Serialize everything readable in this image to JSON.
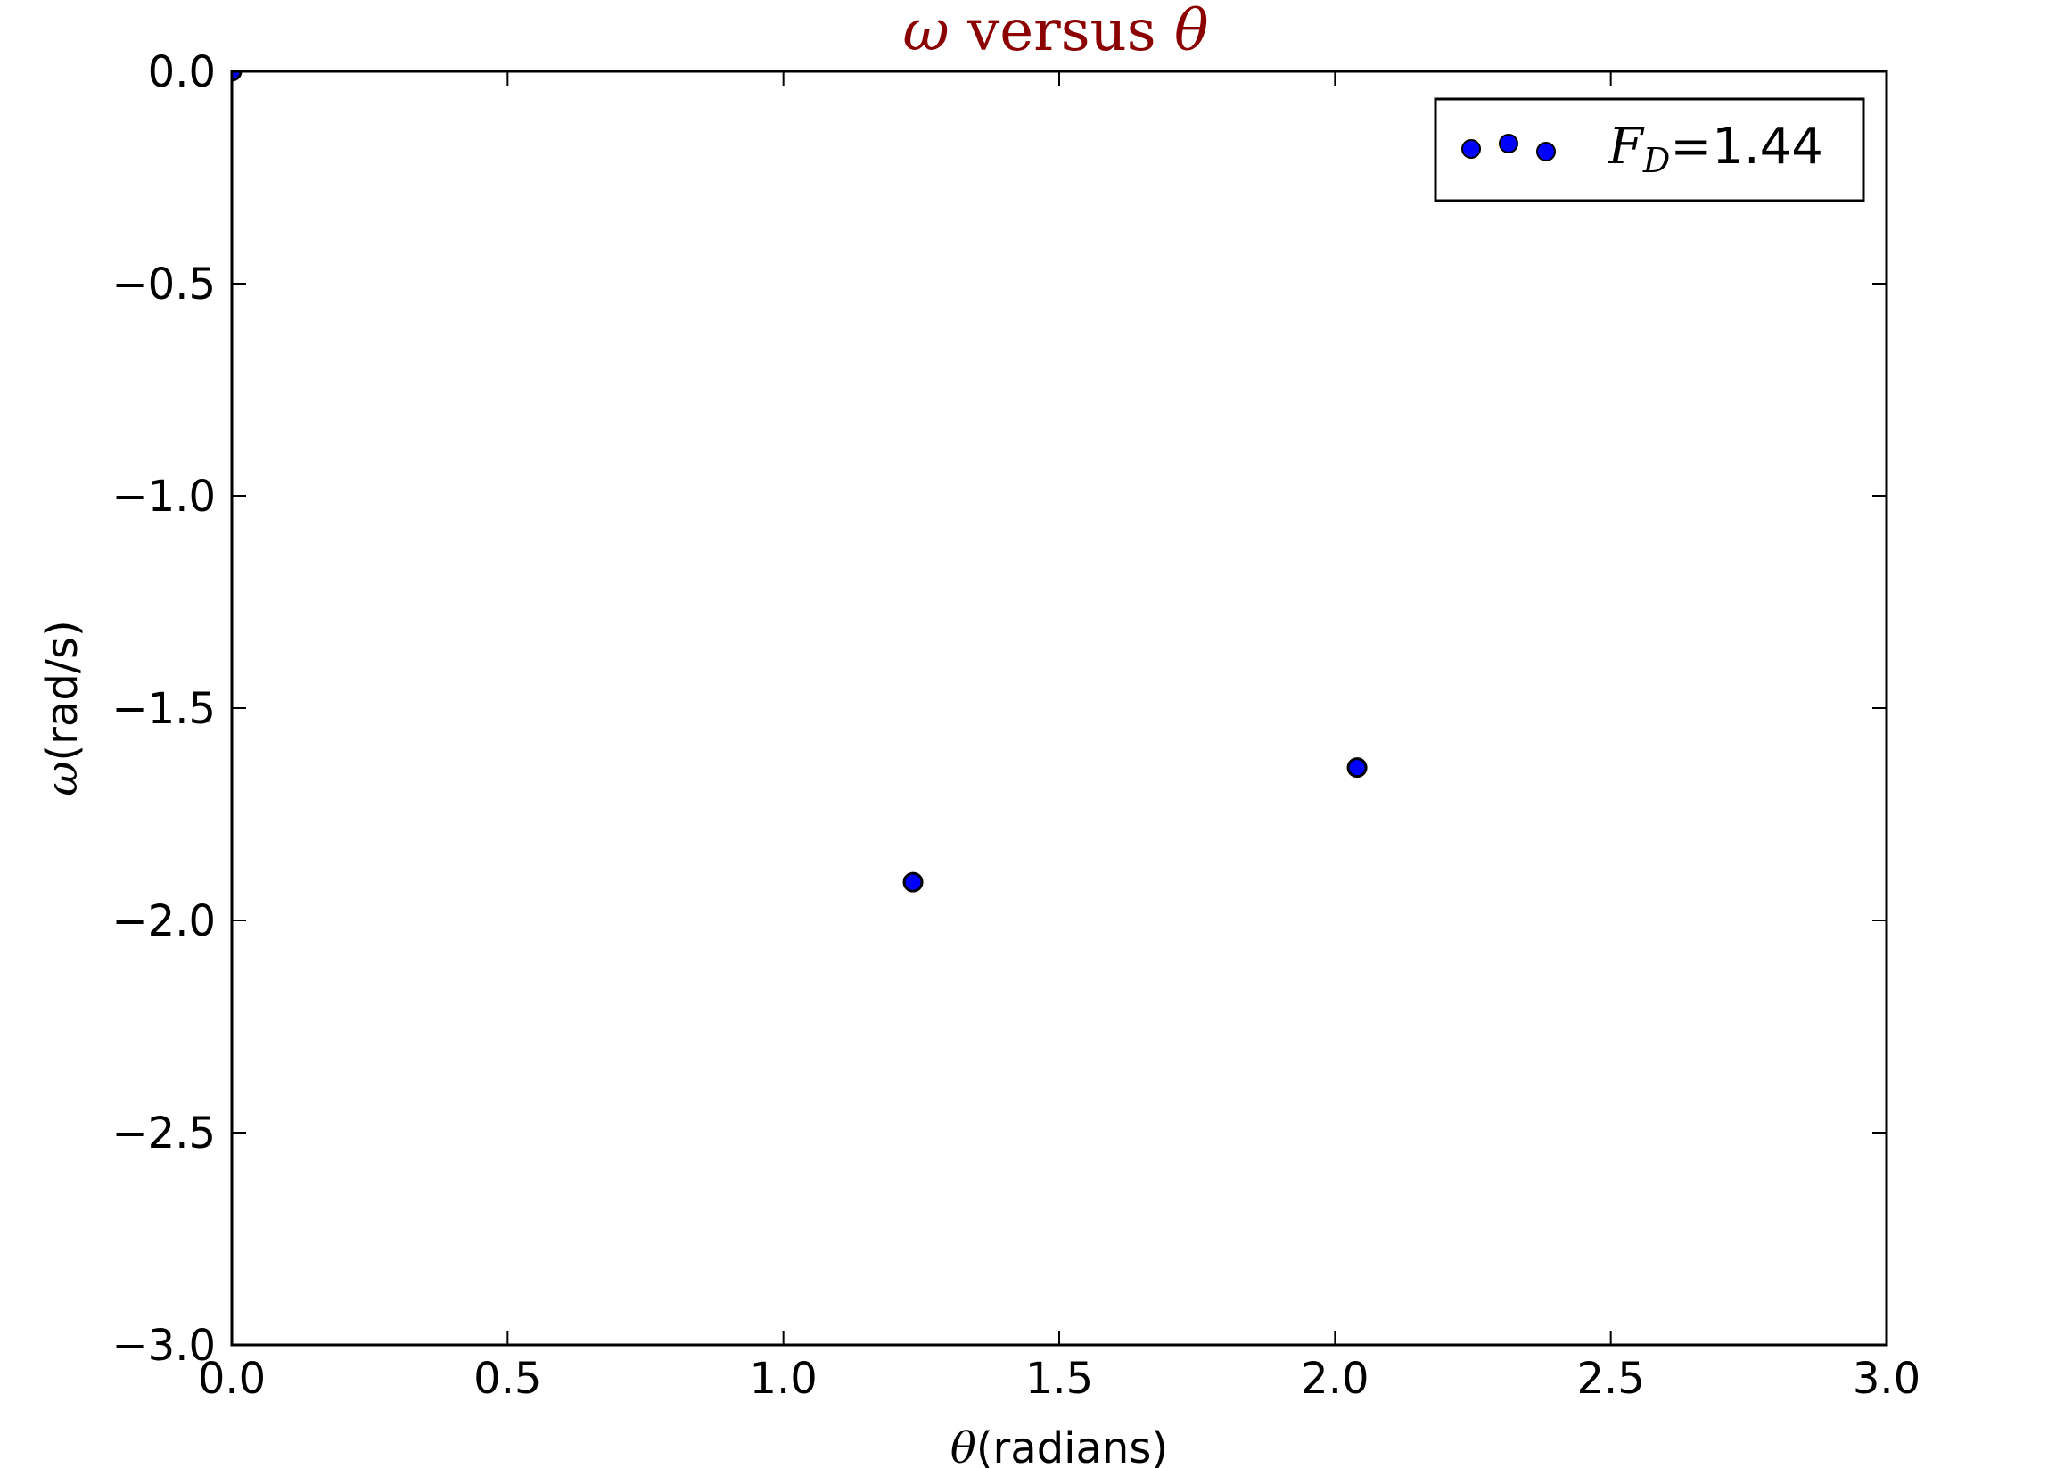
{
  "chart_data": {
    "type": "scatter",
    "title_symbol_left": "ω",
    "title_word": " versus ",
    "title_symbol_right": "θ",
    "title_color": "#8b0000",
    "xlabel_symbol": "θ",
    "xlabel_text": "(radians)",
    "ylabel_symbol": "ω",
    "ylabel_text": "(rad/s)",
    "xlim": [
      0.0,
      3.0
    ],
    "ylim": [
      -3.0,
      0.0
    ],
    "xticks": [
      "0.0",
      "0.5",
      "1.0",
      "1.5",
      "2.0",
      "2.5",
      "3.0"
    ],
    "yticks": [
      "0.0",
      "−0.5",
      "−1.0",
      "−1.5",
      "−2.0",
      "−2.5",
      "−3.0"
    ],
    "xtick_values": [
      0.0,
      0.5,
      1.0,
      1.5,
      2.0,
      2.5,
      3.0
    ],
    "ytick_values": [
      0.0,
      -0.5,
      -1.0,
      -1.5,
      -2.0,
      -2.5,
      -3.0
    ],
    "grid": false,
    "legend_position": "top-right",
    "series": [
      {
        "legend_symbol": "F",
        "legend_subscript": "D",
        "legend_value": "=1.44",
        "marker_color": "#0000ff",
        "points": [
          {
            "x": 0.0,
            "y": 0.0
          },
          {
            "x": 1.235,
            "y": -1.91
          },
          {
            "x": 2.04,
            "y": -1.64
          }
        ]
      }
    ]
  }
}
